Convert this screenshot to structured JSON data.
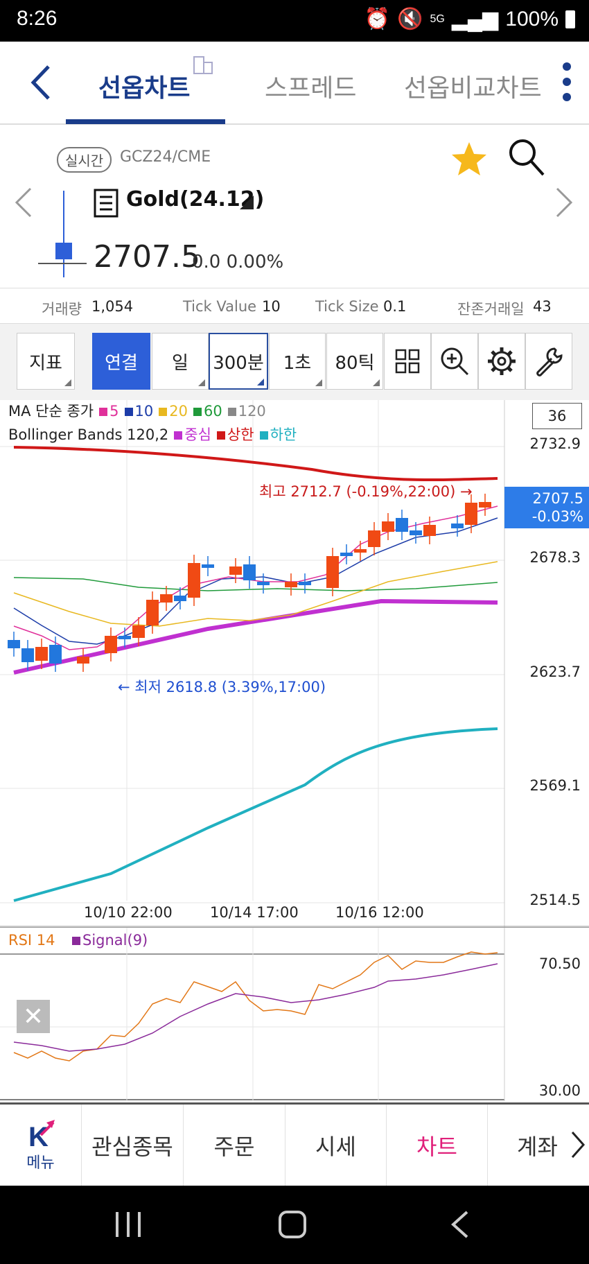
{
  "status_bar": {
    "time": "8:26",
    "battery": "100%",
    "network": "5G"
  },
  "tabs": [
    {
      "label": "선옵차트",
      "active": true
    },
    {
      "label": "스프레드",
      "active": false
    },
    {
      "label": "선옵비교차트",
      "active": false
    }
  ],
  "instrument": {
    "badge": "실시간",
    "symbol": "GCZ24/CME",
    "name": "Gold(24.12)",
    "price": "2707.5",
    "change": "0.0 0.00%",
    "favorite_color": "#f6b81c"
  },
  "stats": [
    {
      "label": "거래량",
      "value": "1,054"
    },
    {
      "label": "Tick Value",
      "value": "10"
    },
    {
      "label": "Tick Size",
      "value": "0.1"
    },
    {
      "label": "잔존거래일",
      "value": "43"
    }
  ],
  "toolbar": {
    "indicator": "지표",
    "connect": "연결",
    "day": "일",
    "interval": "300분",
    "second": "1초",
    "tick": "80틱"
  },
  "chart": {
    "ma_legend": {
      "title": "MA 단순 종가",
      "items": [
        {
          "label": "5",
          "color": "#e0309a"
        },
        {
          "label": "10",
          "color": "#1c3ca8"
        },
        {
          "label": "20",
          "color": "#e8b820"
        },
        {
          "label": "60",
          "color": "#1f9a3a"
        },
        {
          "label": "120",
          "color": "#888888"
        }
      ]
    },
    "bb_legend": {
      "title": "Bollinger Bands 120,2",
      "items": [
        {
          "label": "중심",
          "color": "#c030d0"
        },
        {
          "label": "상한",
          "color": "#d01818"
        },
        {
          "label": "하한",
          "color": "#20b0c0"
        }
      ]
    },
    "count_box": "36",
    "y_ticks": [
      "2732.9",
      "2678.3",
      "2623.7",
      "2569.1",
      "2514.5"
    ],
    "x_ticks": [
      "10/10 22:00",
      "10/14 17:00",
      "10/16 12:00"
    ],
    "current_price_tag": {
      "price": "2707.5",
      "change": "-0.03%"
    },
    "high_annotation": "최고 2712.7 (-0.19%,22:00) →",
    "low_annotation": "← 최저 2618.8 (3.39%,17:00)"
  },
  "rsi": {
    "label": "RSI 14",
    "signal_label": "Signal(9)",
    "upper": "70.50",
    "lower": "30.00"
  },
  "bottom_nav": {
    "menu": "메뉴",
    "items": [
      "관심종목",
      "주문",
      "시세",
      "차트",
      "계좌"
    ],
    "active": "차트"
  }
}
